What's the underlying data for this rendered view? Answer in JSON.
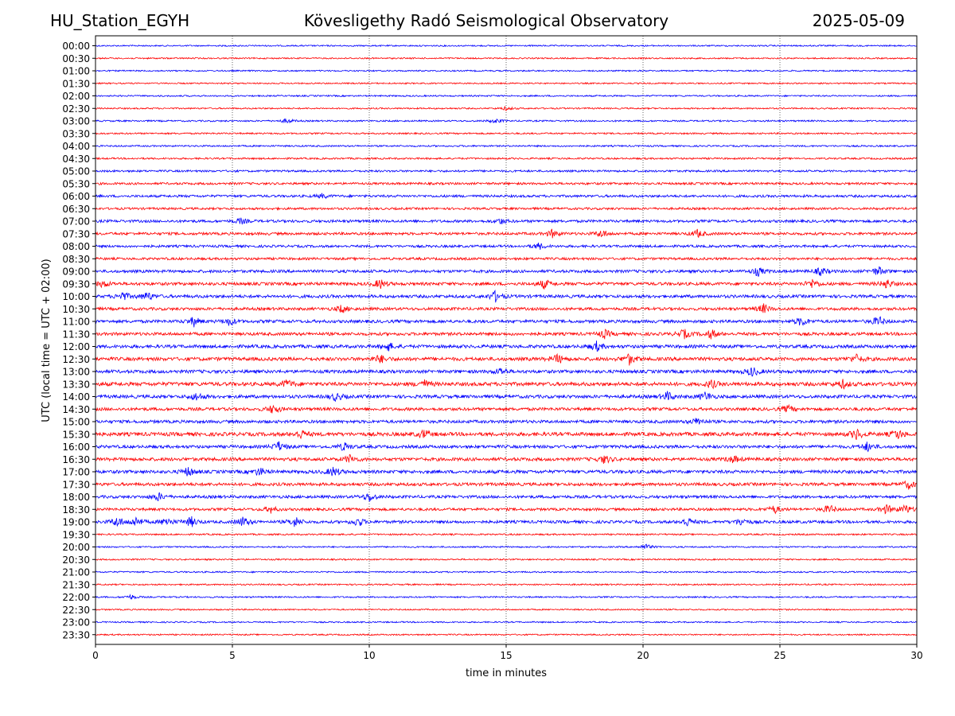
{
  "header": {
    "station": "HU_Station_EGYH",
    "title": "Kövesligethy Radó Seismological Observatory",
    "date": "2025-05-09"
  },
  "chart_data": {
    "type": "line",
    "title": "Kövesligethy Radó Seismological Observatory",
    "xlabel": "time in minutes",
    "ylabel": "UTC (local time = UTC + 02:00)",
    "xlim": [
      0,
      30
    ],
    "x_ticks": [
      0,
      5,
      10,
      15,
      20,
      25,
      30
    ],
    "grid": "vertical dotted at x ticks",
    "colors": {
      "even_rows": "#0000ff",
      "odd_rows": "#ff0000"
    },
    "rows": [
      {
        "label": "00:00",
        "color": "#0000ff",
        "activity": 0.1,
        "events": []
      },
      {
        "label": "00:30",
        "color": "#ff0000",
        "activity": 0.1,
        "events": []
      },
      {
        "label": "01:00",
        "color": "#0000ff",
        "activity": 0.1,
        "events": []
      },
      {
        "label": "01:30",
        "color": "#ff0000",
        "activity": 0.1,
        "events": []
      },
      {
        "label": "02:00",
        "color": "#0000ff",
        "activity": 0.12,
        "events": []
      },
      {
        "label": "02:30",
        "color": "#ff0000",
        "activity": 0.12,
        "events": [
          [
            15.0,
            0.3
          ]
        ]
      },
      {
        "label": "03:00",
        "color": "#0000ff",
        "activity": 0.15,
        "events": [
          [
            7.0,
            0.4
          ],
          [
            14.6,
            0.4
          ]
        ]
      },
      {
        "label": "03:30",
        "color": "#ff0000",
        "activity": 0.15,
        "events": []
      },
      {
        "label": "04:00",
        "color": "#0000ff",
        "activity": 0.15,
        "events": []
      },
      {
        "label": "04:30",
        "color": "#ff0000",
        "activity": 0.18,
        "events": []
      },
      {
        "label": "05:00",
        "color": "#0000ff",
        "activity": 0.25,
        "events": []
      },
      {
        "label": "05:30",
        "color": "#ff0000",
        "activity": 0.3,
        "events": []
      },
      {
        "label": "06:00",
        "color": "#0000ff",
        "activity": 0.35,
        "events": [
          [
            8.3,
            0.4
          ]
        ]
      },
      {
        "label": "06:30",
        "color": "#ff0000",
        "activity": 0.3,
        "events": []
      },
      {
        "label": "07:00",
        "color": "#0000ff",
        "activity": 0.4,
        "events": [
          [
            5.3,
            0.5
          ],
          [
            14.8,
            0.5
          ]
        ]
      },
      {
        "label": "07:30",
        "color": "#ff0000",
        "activity": 0.4,
        "events": [
          [
            16.7,
            0.7
          ],
          [
            18.5,
            0.7
          ],
          [
            22.0,
            0.7
          ]
        ]
      },
      {
        "label": "08:00",
        "color": "#0000ff",
        "activity": 0.35,
        "events": [
          [
            16.2,
            0.6
          ]
        ]
      },
      {
        "label": "08:30",
        "color": "#ff0000",
        "activity": 0.35,
        "events": []
      },
      {
        "label": "09:00",
        "color": "#0000ff",
        "activity": 0.45,
        "events": [
          [
            24.2,
            0.8
          ],
          [
            26.5,
            0.7
          ],
          [
            28.6,
            0.8
          ]
        ]
      },
      {
        "label": "09:30",
        "color": "#ff0000",
        "activity": 0.5,
        "events": [
          [
            0.3,
            0.6
          ],
          [
            10.4,
            0.8
          ],
          [
            16.4,
            0.8
          ],
          [
            26.2,
            0.8
          ],
          [
            28.9,
            0.8
          ]
        ]
      },
      {
        "label": "10:00",
        "color": "#0000ff",
        "activity": 0.5,
        "events": [
          [
            1.0,
            0.8
          ],
          [
            1.9,
            0.8
          ],
          [
            14.6,
            0.9
          ]
        ]
      },
      {
        "label": "10:30",
        "color": "#ff0000",
        "activity": 0.45,
        "events": [
          [
            9.0,
            0.7
          ],
          [
            24.4,
            0.8
          ]
        ]
      },
      {
        "label": "11:00",
        "color": "#0000ff",
        "activity": 0.5,
        "events": [
          [
            3.6,
            0.8
          ],
          [
            4.9,
            0.7
          ],
          [
            25.8,
            0.8
          ],
          [
            28.6,
            0.9
          ]
        ]
      },
      {
        "label": "11:30",
        "color": "#ff0000",
        "activity": 0.5,
        "events": [
          [
            18.6,
            0.7
          ],
          [
            21.5,
            0.8
          ],
          [
            22.5,
            0.8
          ]
        ]
      },
      {
        "label": "12:00",
        "color": "#0000ff",
        "activity": 0.55,
        "events": [
          [
            10.7,
            0.7
          ],
          [
            18.3,
            0.8
          ]
        ]
      },
      {
        "label": "12:30",
        "color": "#ff0000",
        "activity": 0.6,
        "events": [
          [
            10.4,
            0.7
          ],
          [
            16.9,
            0.8
          ],
          [
            19.5,
            0.9
          ],
          [
            27.8,
            0.7
          ]
        ]
      },
      {
        "label": "13:00",
        "color": "#0000ff",
        "activity": 0.55,
        "events": [
          [
            14.8,
            0.6
          ],
          [
            24.0,
            0.8
          ]
        ]
      },
      {
        "label": "13:30",
        "color": "#ff0000",
        "activity": 0.65,
        "events": [
          [
            7.0,
            0.7
          ],
          [
            12.0,
            0.7
          ],
          [
            22.5,
            0.7
          ],
          [
            27.3,
            0.7
          ]
        ]
      },
      {
        "label": "14:00",
        "color": "#0000ff",
        "activity": 0.55,
        "events": [
          [
            3.7,
            0.7
          ],
          [
            8.8,
            0.7
          ],
          [
            20.9,
            0.8
          ],
          [
            22.3,
            0.8
          ]
        ]
      },
      {
        "label": "14:30",
        "color": "#ff0000",
        "activity": 0.5,
        "events": [
          [
            6.5,
            0.8
          ],
          [
            25.3,
            0.6
          ]
        ]
      },
      {
        "label": "15:00",
        "color": "#0000ff",
        "activity": 0.5,
        "events": [
          [
            22.0,
            0.7
          ]
        ]
      },
      {
        "label": "15:30",
        "color": "#ff0000",
        "activity": 0.65,
        "events": [
          [
            7.5,
            0.7
          ],
          [
            12.0,
            0.7
          ],
          [
            27.8,
            0.9
          ],
          [
            29.3,
            0.8
          ]
        ]
      },
      {
        "label": "16:00",
        "color": "#0000ff",
        "activity": 0.5,
        "events": [
          [
            6.7,
            0.8
          ],
          [
            9.1,
            0.7
          ],
          [
            28.2,
            0.8
          ]
        ]
      },
      {
        "label": "16:30",
        "color": "#ff0000",
        "activity": 0.55,
        "events": [
          [
            9.3,
            0.7
          ],
          [
            18.6,
            0.7
          ],
          [
            23.3,
            0.6
          ]
        ]
      },
      {
        "label": "17:00",
        "color": "#0000ff",
        "activity": 0.55,
        "events": [
          [
            3.4,
            0.8
          ],
          [
            6.0,
            0.7
          ],
          [
            8.7,
            0.8
          ]
        ]
      },
      {
        "label": "17:30",
        "color": "#ff0000",
        "activity": 0.5,
        "events": [
          [
            29.7,
            0.7
          ]
        ]
      },
      {
        "label": "18:00",
        "color": "#0000ff",
        "activity": 0.45,
        "events": [
          [
            2.3,
            0.7
          ],
          [
            10.0,
            0.8
          ]
        ]
      },
      {
        "label": "18:30",
        "color": "#ff0000",
        "activity": 0.4,
        "events": [
          [
            6.4,
            0.6
          ],
          [
            24.8,
            0.7
          ],
          [
            26.8,
            0.8
          ],
          [
            28.9,
            0.8
          ],
          [
            29.6,
            0.8
          ]
        ]
      },
      {
        "label": "19:00",
        "color": "#0000ff",
        "activity": 0.45,
        "events": [
          [
            0.8,
            0.9
          ],
          [
            1.5,
            0.9
          ],
          [
            2.6,
            0.8
          ],
          [
            3.5,
            0.9
          ],
          [
            5.4,
            0.9
          ],
          [
            7.3,
            0.9
          ],
          [
            9.6,
            0.8
          ],
          [
            21.6,
            0.8
          ],
          [
            23.6,
            0.7
          ]
        ]
      },
      {
        "label": "19:30",
        "color": "#ff0000",
        "activity": 0.15,
        "events": []
      },
      {
        "label": "20:00",
        "color": "#0000ff",
        "activity": 0.12,
        "events": [
          [
            20.1,
            0.5
          ]
        ]
      },
      {
        "label": "20:30",
        "color": "#ff0000",
        "activity": 0.12,
        "events": []
      },
      {
        "label": "21:00",
        "color": "#0000ff",
        "activity": 0.12,
        "events": []
      },
      {
        "label": "21:30",
        "color": "#ff0000",
        "activity": 0.12,
        "events": []
      },
      {
        "label": "22:00",
        "color": "#0000ff",
        "activity": 0.12,
        "events": [
          [
            1.3,
            0.4
          ]
        ]
      },
      {
        "label": "22:30",
        "color": "#ff0000",
        "activity": 0.1,
        "events": []
      },
      {
        "label": "23:00",
        "color": "#0000ff",
        "activity": 0.1,
        "events": []
      },
      {
        "label": "23:30",
        "color": "#ff0000",
        "activity": 0.1,
        "events": []
      }
    ]
  }
}
